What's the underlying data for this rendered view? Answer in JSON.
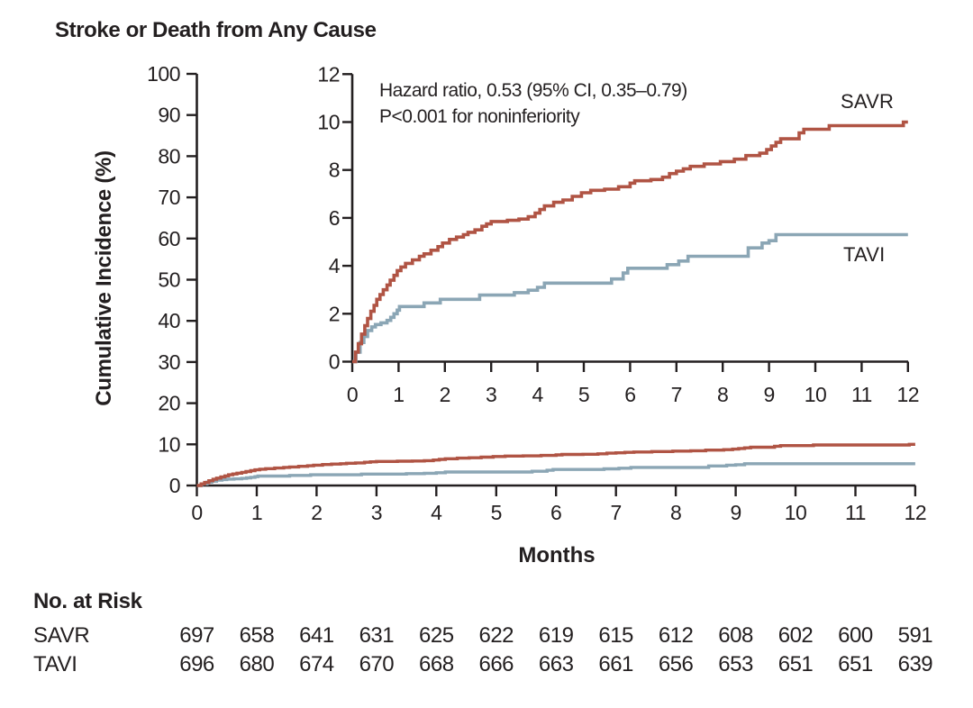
{
  "title": "Stroke or Death from Any Cause",
  "axes": {
    "x_label": "Months",
    "y_label": "Cumulative Incidence (%)"
  },
  "annotation": {
    "hazard_ratio": "Hazard ratio, 0.53 (95% CI, 0.35–0.79)",
    "p_value": "P<0.001 for noninferiority"
  },
  "colors": {
    "savr": "#b05444",
    "tavi": "#8ba6b5",
    "axis": "#231f20",
    "text": "#231f20",
    "background": "#ffffff"
  },
  "chart_data": {
    "type": "line",
    "subtype": "kaplan_meier_step_cumulative_incidence",
    "title": "Stroke or Death from Any Cause",
    "xlabel": "Months",
    "ylabel": "Cumulative Incidence (%)",
    "grid": false,
    "legend_position": "inline-right-of-curves",
    "main_axis": {
      "xlim": [
        0,
        12
      ],
      "ylim": [
        0,
        100
      ],
      "xticks": [
        0,
        1,
        2,
        3,
        4,
        5,
        6,
        7,
        8,
        9,
        10,
        11,
        12
      ],
      "yticks": [
        0,
        10,
        20,
        30,
        40,
        50,
        60,
        70,
        80,
        90,
        100
      ]
    },
    "inset_axis": {
      "xlim": [
        0,
        12
      ],
      "ylim": [
        0,
        12
      ],
      "xticks": [
        0,
        1,
        2,
        3,
        4,
        5,
        6,
        7,
        8,
        9,
        10,
        11,
        12
      ],
      "yticks": [
        0,
        2,
        4,
        6,
        8,
        10,
        12
      ]
    },
    "series": [
      {
        "name": "SAVR",
        "color": "#b05444",
        "final_value_pct": 10.0,
        "points": [
          [
            0,
            0
          ],
          [
            0.07,
            0.4
          ],
          [
            0.13,
            0.75
          ],
          [
            0.2,
            1.15
          ],
          [
            0.27,
            1.5
          ],
          [
            0.33,
            1.8
          ],
          [
            0.4,
            2.1
          ],
          [
            0.47,
            2.35
          ],
          [
            0.53,
            2.6
          ],
          [
            0.6,
            2.8
          ],
          [
            0.67,
            3.0
          ],
          [
            0.75,
            3.2
          ],
          [
            0.82,
            3.4
          ],
          [
            0.9,
            3.6
          ],
          [
            0.97,
            3.8
          ],
          [
            1.05,
            3.95
          ],
          [
            1.15,
            4.1
          ],
          [
            1.3,
            4.25
          ],
          [
            1.45,
            4.4
          ],
          [
            1.55,
            4.5
          ],
          [
            1.7,
            4.65
          ],
          [
            1.85,
            4.8
          ],
          [
            1.95,
            4.95
          ],
          [
            2.1,
            5.1
          ],
          [
            2.25,
            5.2
          ],
          [
            2.4,
            5.3
          ],
          [
            2.5,
            5.4
          ],
          [
            2.65,
            5.5
          ],
          [
            2.8,
            5.65
          ],
          [
            2.9,
            5.75
          ],
          [
            3.0,
            5.85
          ],
          [
            3.35,
            5.9
          ],
          [
            3.6,
            5.95
          ],
          [
            3.8,
            6.05
          ],
          [
            3.95,
            6.2
          ],
          [
            4.05,
            6.35
          ],
          [
            4.15,
            6.5
          ],
          [
            4.35,
            6.65
          ],
          [
            4.55,
            6.75
          ],
          [
            4.75,
            6.9
          ],
          [
            4.95,
            7.05
          ],
          [
            5.15,
            7.15
          ],
          [
            5.45,
            7.2
          ],
          [
            5.75,
            7.3
          ],
          [
            6.0,
            7.45
          ],
          [
            6.1,
            7.55
          ],
          [
            6.45,
            7.6
          ],
          [
            6.7,
            7.7
          ],
          [
            6.85,
            7.85
          ],
          [
            7.0,
            7.95
          ],
          [
            7.15,
            8.05
          ],
          [
            7.3,
            8.15
          ],
          [
            7.6,
            8.25
          ],
          [
            7.95,
            8.35
          ],
          [
            8.25,
            8.45
          ],
          [
            8.5,
            8.6
          ],
          [
            8.8,
            8.7
          ],
          [
            8.95,
            8.85
          ],
          [
            9.05,
            9.0
          ],
          [
            9.15,
            9.15
          ],
          [
            9.25,
            9.3
          ],
          [
            9.65,
            9.55
          ],
          [
            9.75,
            9.7
          ],
          [
            10.3,
            9.85
          ],
          [
            11.9,
            10.0
          ],
          [
            12,
            10.0
          ]
        ]
      },
      {
        "name": "TAVI",
        "color": "#8ba6b5",
        "final_value_pct": 5.3,
        "points": [
          [
            0,
            0
          ],
          [
            0.08,
            0.4
          ],
          [
            0.17,
            0.8
          ],
          [
            0.25,
            1.05
          ],
          [
            0.33,
            1.3
          ],
          [
            0.42,
            1.45
          ],
          [
            0.5,
            1.55
          ],
          [
            0.62,
            1.62
          ],
          [
            0.75,
            1.72
          ],
          [
            0.83,
            1.85
          ],
          [
            0.9,
            2.0
          ],
          [
            0.97,
            2.15
          ],
          [
            1.02,
            2.3
          ],
          [
            1.55,
            2.45
          ],
          [
            1.9,
            2.6
          ],
          [
            2.75,
            2.78
          ],
          [
            3.5,
            2.88
          ],
          [
            3.8,
            2.98
          ],
          [
            4.0,
            3.1
          ],
          [
            4.15,
            3.28
          ],
          [
            5.6,
            3.45
          ],
          [
            5.85,
            3.7
          ],
          [
            5.95,
            3.9
          ],
          [
            6.8,
            4.05
          ],
          [
            7.05,
            4.2
          ],
          [
            7.25,
            4.4
          ],
          [
            8.55,
            4.75
          ],
          [
            8.85,
            4.95
          ],
          [
            9.0,
            5.05
          ],
          [
            9.15,
            5.3
          ],
          [
            12,
            5.3
          ]
        ]
      }
    ],
    "no_at_risk": {
      "heading": "No. at Risk",
      "months": [
        0,
        1,
        2,
        3,
        4,
        5,
        6,
        7,
        8,
        9,
        10,
        11,
        12
      ],
      "rows": [
        {
          "label": "SAVR",
          "values": [
            697,
            658,
            641,
            631,
            625,
            622,
            619,
            615,
            612,
            608,
            602,
            600,
            591
          ]
        },
        {
          "label": "TAVI",
          "values": [
            696,
            680,
            674,
            670,
            668,
            666,
            663,
            661,
            656,
            653,
            651,
            651,
            639
          ]
        }
      ]
    }
  }
}
